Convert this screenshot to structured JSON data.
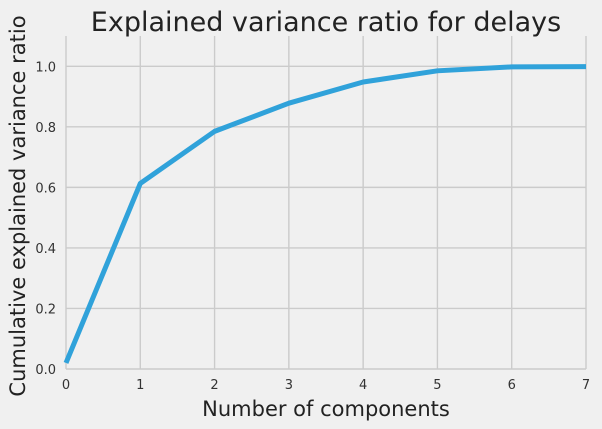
{
  "chart_data": {
    "type": "line",
    "title": "Explained variance ratio for delays",
    "xlabel": "Number of components",
    "ylabel": "Cumulative explained variance ratio",
    "xlim": [
      0,
      7
    ],
    "ylim": [
      0,
      1.1
    ],
    "grid": true,
    "xticks": [
      0,
      1,
      2,
      3,
      4,
      5,
      6,
      7
    ],
    "xtick_labels": [
      "0",
      "1",
      "2",
      "3",
      "4",
      "5",
      "6",
      "7"
    ],
    "yticks": [
      0,
      0.2,
      0.4,
      0.6,
      0.8,
      1.0
    ],
    "ytick_labels": [
      "0.0",
      "0.2",
      "0.4",
      "0.6",
      "0.8",
      "1.0"
    ],
    "series": [
      {
        "color": "#30a2da",
        "x": [
          0,
          1,
          2,
          3,
          4,
          5,
          6,
          7
        ],
        "y": [
          0.02,
          0.613,
          0.785,
          0.878,
          0.948,
          0.985,
          0.998,
          0.999
        ]
      }
    ]
  }
}
